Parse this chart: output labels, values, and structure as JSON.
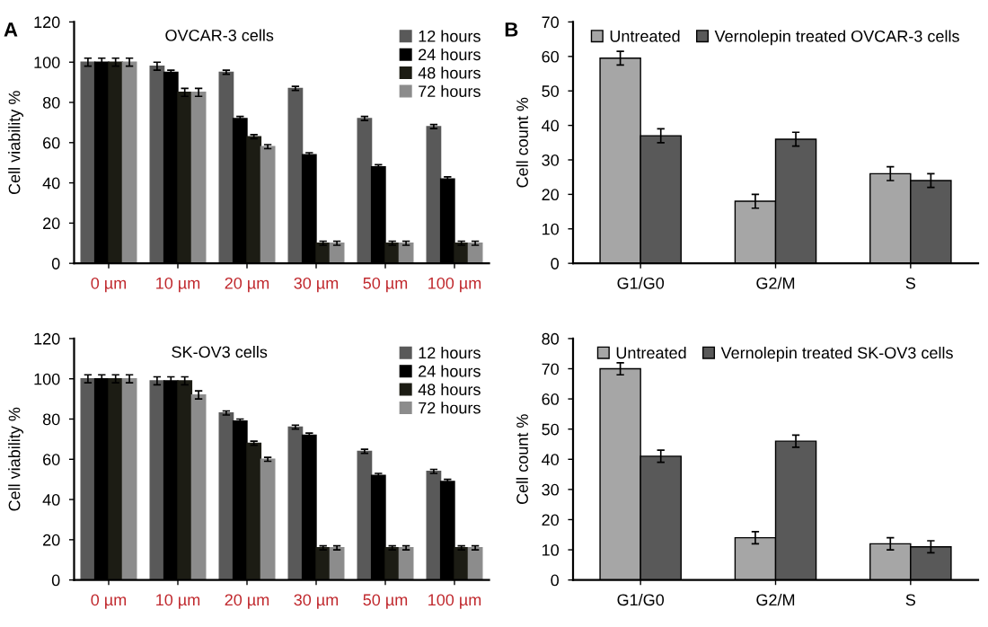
{
  "chart_data": [
    {
      "type": "bar",
      "title": "OVCAR-3 cells",
      "ylabel": "Cell viability %",
      "annotations": [
        "A"
      ],
      "categories": [
        "0 µm",
        "10 µm",
        "20 µm",
        "30 µm",
        "50 µm",
        "100 µm"
      ],
      "ylim": [
        0,
        120
      ],
      "yticks": [
        0,
        20,
        40,
        60,
        80,
        100,
        120
      ],
      "legend": "top right",
      "series": [
        {
          "name": "12 hours",
          "color": "#595959",
          "values": [
            100,
            98,
            95,
            87,
            72,
            68
          ],
          "errors": [
            2,
            2,
            1,
            1,
            1,
            1
          ]
        },
        {
          "name": "24 hours",
          "color": "#000000",
          "values": [
            100,
            95,
            72,
            54,
            48,
            42
          ],
          "errors": [
            2,
            1,
            1,
            1,
            1,
            1
          ]
        },
        {
          "name": "48 hours",
          "color": "#1c1c14",
          "values": [
            100,
            85,
            63,
            10,
            10,
            10
          ],
          "errors": [
            2,
            2,
            1,
            1,
            1,
            1
          ]
        },
        {
          "name": "72 hours",
          "color": "#8c8c8c",
          "values": [
            100,
            85,
            58,
            10,
            10,
            10
          ],
          "errors": [
            2,
            2,
            1,
            1,
            1,
            1
          ]
        }
      ]
    },
    {
      "type": "bar",
      "title": "SK-OV3 cells",
      "ylabel": "Cell viability %",
      "categories": [
        "0 µm",
        "10 µm",
        "20 µm",
        "30 µm",
        "50 µm",
        "100 µm"
      ],
      "ylim": [
        0,
        120
      ],
      "yticks": [
        0,
        20,
        40,
        60,
        80,
        100,
        120
      ],
      "legend": "top right",
      "series": [
        {
          "name": "12 hours",
          "color": "#595959",
          "values": [
            100,
            99,
            83,
            76,
            64,
            54
          ],
          "errors": [
            2,
            2,
            1,
            1,
            1,
            1
          ]
        },
        {
          "name": "24 hours",
          "color": "#000000",
          "values": [
            100,
            99,
            79,
            72,
            52,
            49
          ],
          "errors": [
            2,
            2,
            1,
            1,
            1,
            1
          ]
        },
        {
          "name": "48 hours",
          "color": "#1c1c14",
          "values": [
            100,
            99,
            68,
            16,
            16,
            16
          ],
          "errors": [
            2,
            2,
            1,
            1,
            1,
            1
          ]
        },
        {
          "name": "72 hours",
          "color": "#8c8c8c",
          "values": [
            100,
            92,
            60,
            16,
            16,
            16
          ],
          "errors": [
            2,
            2,
            1,
            1,
            1,
            1
          ]
        }
      ]
    },
    {
      "type": "bar",
      "ylabel": "Cell count %",
      "annotations": [
        "B"
      ],
      "categories": [
        "G1/G0",
        "G2/M",
        "S"
      ],
      "ylim": [
        0,
        70
      ],
      "yticks": [
        0,
        10,
        20,
        30,
        40,
        50,
        60,
        70
      ],
      "legend": "top",
      "series": [
        {
          "name": "Untreated",
          "color": "#a6a6a6",
          "values": [
            59.5,
            18,
            26
          ],
          "errors": [
            2,
            2,
            2
          ]
        },
        {
          "name": "Vernolepin treated OVCAR-3 cells",
          "color": "#595959",
          "values": [
            37,
            36,
            24
          ],
          "errors": [
            2,
            2,
            2
          ]
        }
      ]
    },
    {
      "type": "bar",
      "ylabel": "Cell count %",
      "categories": [
        "G1/G0",
        "G2/M",
        "S"
      ],
      "ylim": [
        0,
        80
      ],
      "yticks": [
        0,
        10,
        20,
        30,
        40,
        50,
        60,
        70,
        80
      ],
      "legend": "top",
      "series": [
        {
          "name": "Untreated",
          "color": "#a6a6a6",
          "values": [
            70,
            14,
            12
          ],
          "errors": [
            2,
            2,
            2
          ]
        },
        {
          "name": "Vernolepin treated SK-OV3 cells",
          "color": "#595959",
          "values": [
            41,
            46,
            11
          ],
          "errors": [
            2,
            2,
            2
          ]
        }
      ]
    }
  ]
}
